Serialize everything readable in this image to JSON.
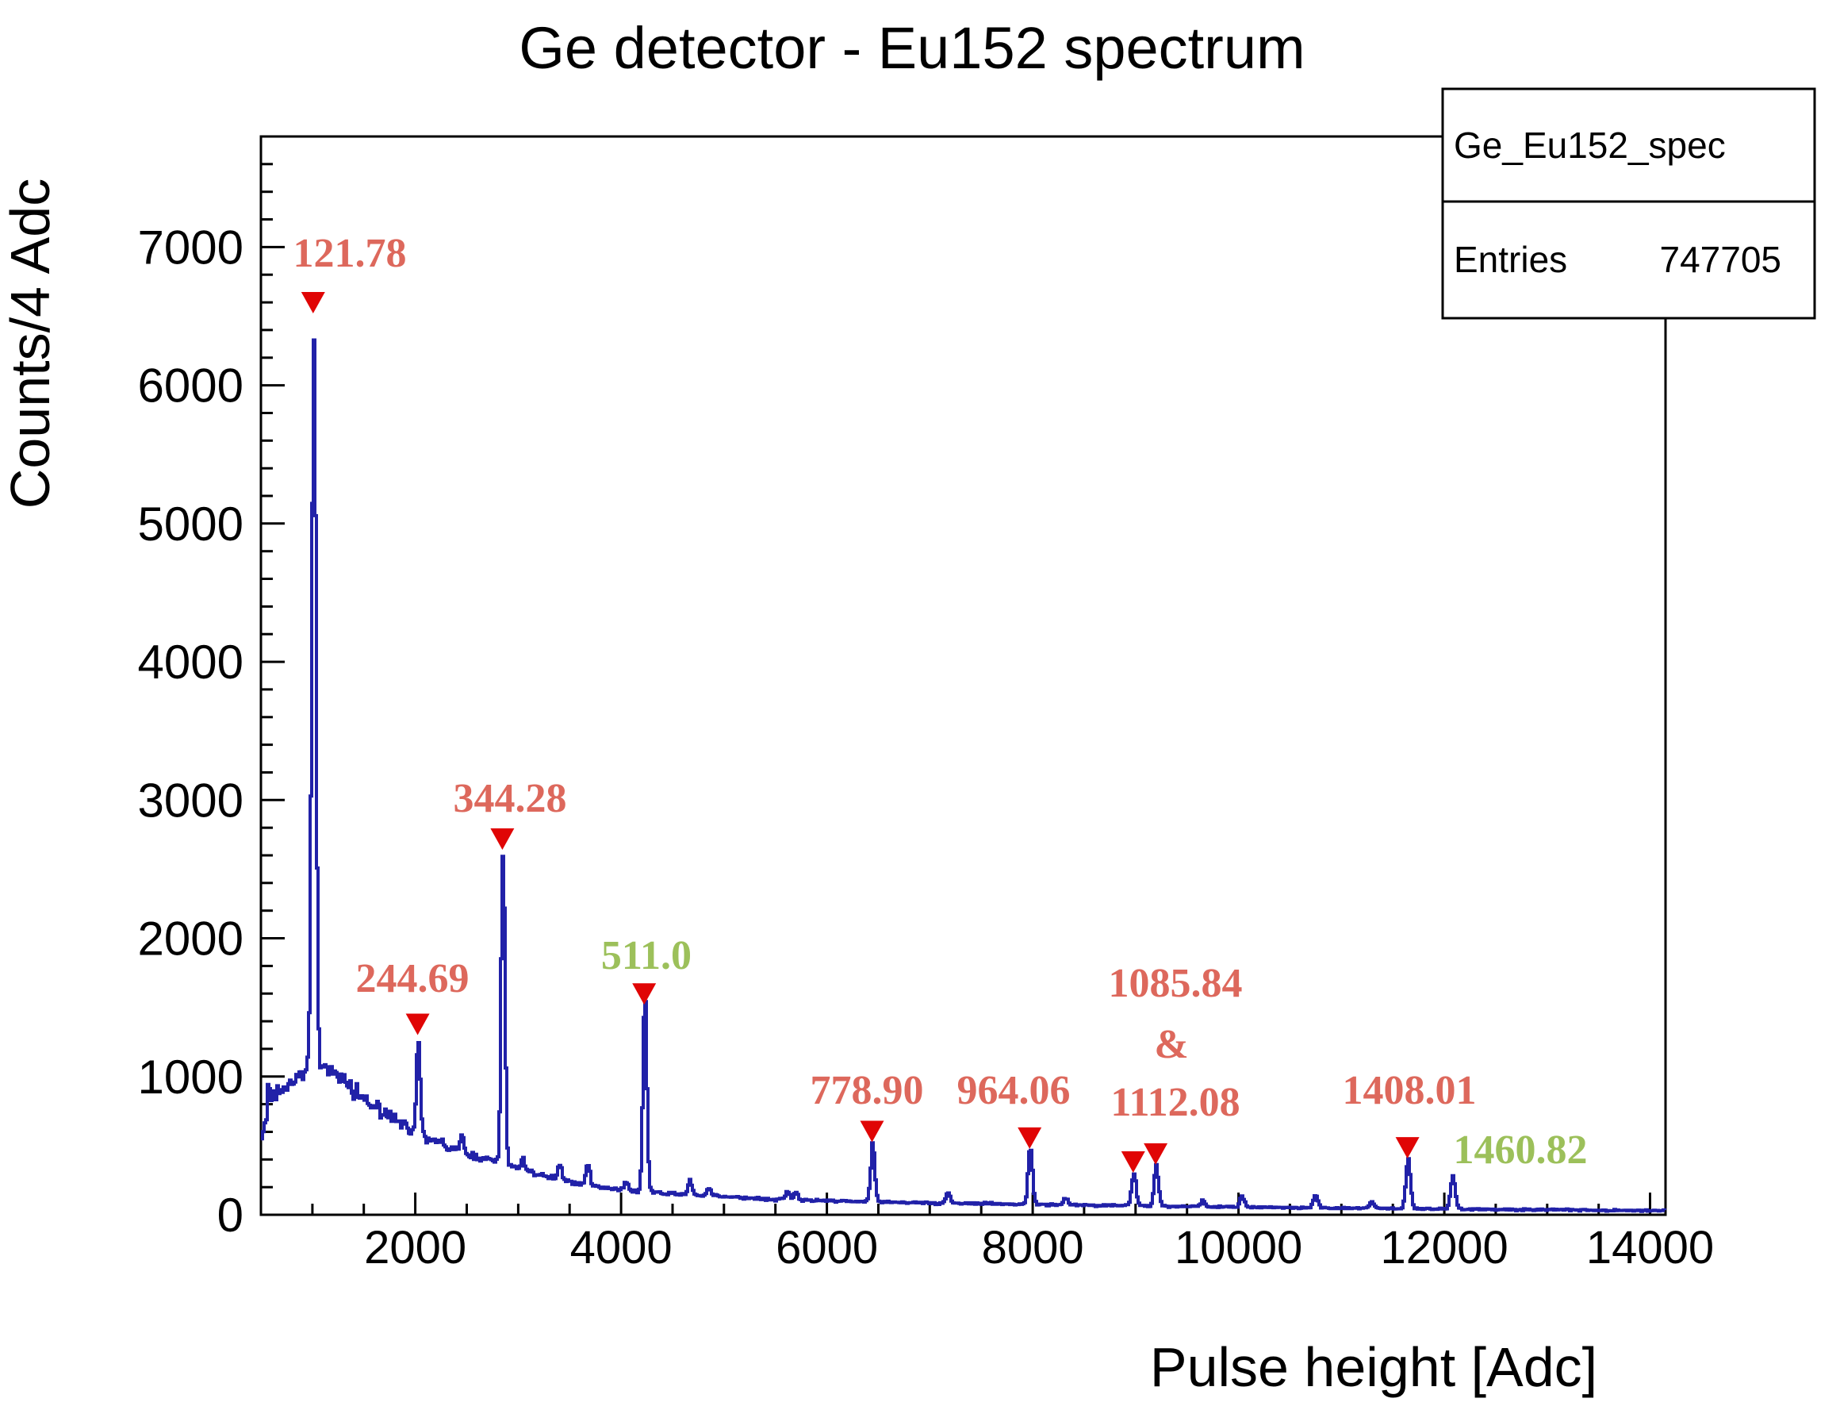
{
  "title": "Ge detector - Eu152 spectrum",
  "stats_box": {
    "histogram_name": "Ge_Eu152_spec",
    "entries_label": "Entries",
    "entries_value": "747705"
  },
  "axes": {
    "x_label": "Pulse height [Adc]",
    "y_label": "Counts/4 Adc",
    "x_min": 500,
    "x_max": 14150,
    "x_major_step": 2000,
    "x_minor_step": 500,
    "x_label_first": 2000,
    "x_label_last": 14000,
    "y_min": 0,
    "y_max": 7800,
    "y_major_step": 1000,
    "y_minor_step": 200,
    "y_label_first": 0,
    "y_label_last": 7000
  },
  "colors": {
    "spectrum": "#2121a8",
    "marker": "#e00505",
    "label_red": "#dd685c",
    "label_green": "#9cc05a",
    "axis": "#000000",
    "background": "#ffffff"
  },
  "chart_data": {
    "type": "line",
    "x_unit": "Adc",
    "y_unit": "Counts/4 Adc",
    "title": "Ge detector - Eu152 spectrum",
    "xlim": [
      500,
      14150
    ],
    "ylim": [
      0,
      7800
    ],
    "continuum_points": [
      [
        500,
        545
      ],
      [
        540,
        680
      ],
      [
        610,
        845
      ],
      [
        660,
        870
      ],
      [
        740,
        918
      ],
      [
        820,
        962
      ],
      [
        900,
        1020
      ],
      [
        980,
        1058
      ],
      [
        1080,
        1075
      ],
      [
        1200,
        1020
      ],
      [
        1300,
        960
      ],
      [
        1400,
        890
      ],
      [
        1500,
        830
      ],
      [
        1660,
        750
      ],
      [
        1850,
        662
      ],
      [
        2000,
        600
      ],
      [
        2300,
        492
      ],
      [
        2600,
        420
      ],
      [
        3000,
        330
      ],
      [
        3400,
        252
      ],
      [
        3800,
        196
      ],
      [
        4200,
        165
      ],
      [
        4800,
        138
      ],
      [
        5400,
        116
      ],
      [
        6000,
        101
      ],
      [
        6600,
        91
      ],
      [
        7300,
        83
      ],
      [
        8000,
        75
      ],
      [
        8700,
        68
      ],
      [
        9400,
        61
      ],
      [
        10000,
        55
      ],
      [
        10700,
        50
      ],
      [
        11500,
        45
      ],
      [
        12300,
        40
      ],
      [
        13100,
        35
      ],
      [
        14150,
        30
      ]
    ],
    "peaks": [
      {
        "adc": 565,
        "amplitude": 185,
        "sigma": 12
      },
      {
        "adc": 1007,
        "amplitude": 5480,
        "sigma": 20,
        "energy_kev": 121.78
      },
      {
        "adc": 2023,
        "amplitude": 700,
        "sigma": 18,
        "energy_kev": 244.69
      },
      {
        "adc": 2447,
        "amplitude": 85,
        "sigma": 18
      },
      {
        "adc": 2846,
        "amplitude": 2280,
        "sigma": 18,
        "energy_kev": 344.28
      },
      {
        "adc": 3041,
        "amplitude": 85,
        "sigma": 18
      },
      {
        "adc": 3399,
        "amplitude": 115,
        "sigma": 18
      },
      {
        "adc": 3670,
        "amplitude": 165,
        "sigma": 18
      },
      {
        "adc": 4041,
        "amplitude": 70,
        "sigma": 19
      },
      {
        "adc": 4224,
        "amplitude": 1360,
        "sigma": 19,
        "energy_kev": 511.0
      },
      {
        "adc": 4663,
        "amplitude": 105,
        "sigma": 19
      },
      {
        "adc": 4848,
        "amplitude": 60,
        "sigma": 19
      },
      {
        "adc": 5612,
        "amplitude": 60,
        "sigma": 20
      },
      {
        "adc": 5695,
        "amplitude": 50,
        "sigma": 20
      },
      {
        "adc": 6439,
        "amplitude": 430,
        "sigma": 20,
        "energy_kev": 778.9
      },
      {
        "adc": 7171,
        "amplitude": 75,
        "sigma": 21
      },
      {
        "adc": 7970,
        "amplitude": 400,
        "sigma": 21,
        "energy_kev": 964.06
      },
      {
        "adc": 8312,
        "amplitude": 50,
        "sigma": 21
      },
      {
        "adc": 8977,
        "amplitude": 235,
        "sigma": 21,
        "energy_kev": 1085.84
      },
      {
        "adc": 9195,
        "amplitude": 295,
        "sigma": 21,
        "energy_kev": 1112.08
      },
      {
        "adc": 9650,
        "amplitude": 40,
        "sigma": 22
      },
      {
        "adc": 10027,
        "amplitude": 80,
        "sigma": 22
      },
      {
        "adc": 10742,
        "amplitude": 95,
        "sigma": 22
      },
      {
        "adc": 11289,
        "amplitude": 55,
        "sigma": 22
      },
      {
        "adc": 11642,
        "amplitude": 365,
        "sigma": 22,
        "energy_kev": 1408.01
      },
      {
        "adc": 12077,
        "amplitude": 240,
        "sigma": 22,
        "energy_kev": 1460.82
      }
    ],
    "markers": [
      {
        "adc": 1007,
        "counts": 6520
      },
      {
        "adc": 2023,
        "counts": 1300
      },
      {
        "adc": 2846,
        "counts": 2640
      },
      {
        "adc": 4224,
        "counts": 1520
      },
      {
        "adc": 6439,
        "counts": 525
      },
      {
        "adc": 7970,
        "counts": 477
      },
      {
        "adc": 8977,
        "counts": 304
      },
      {
        "adc": 9195,
        "counts": 362
      },
      {
        "adc": 11642,
        "counts": 407
      }
    ],
    "annotations": [
      {
        "text": "121.78",
        "x": 441,
        "y": 318,
        "color": "red"
      },
      {
        "text": "244.69",
        "x": 520,
        "y": 1232,
        "color": "red"
      },
      {
        "text": "344.28",
        "x": 643,
        "y": 1005,
        "color": "red"
      },
      {
        "text": "511.0",
        "x": 815,
        "y": 1203,
        "color": "green"
      },
      {
        "text": "778.90",
        "x": 1093,
        "y": 1373,
        "color": "red"
      },
      {
        "text": "964.06",
        "x": 1278,
        "y": 1373,
        "color": "red"
      },
      {
        "text": "1085.84",
        "x": 1482,
        "y": 1238,
        "color": "red"
      },
      {
        "text": "&",
        "x": 1477,
        "y": 1315,
        "color": "red"
      },
      {
        "text": "1112.08",
        "x": 1482,
        "y": 1388,
        "color": "red"
      },
      {
        "text": "1408.01",
        "x": 1777,
        "y": 1373,
        "color": "red"
      },
      {
        "text": "1460.82",
        "x": 1917,
        "y": 1448,
        "color": "green"
      }
    ]
  }
}
